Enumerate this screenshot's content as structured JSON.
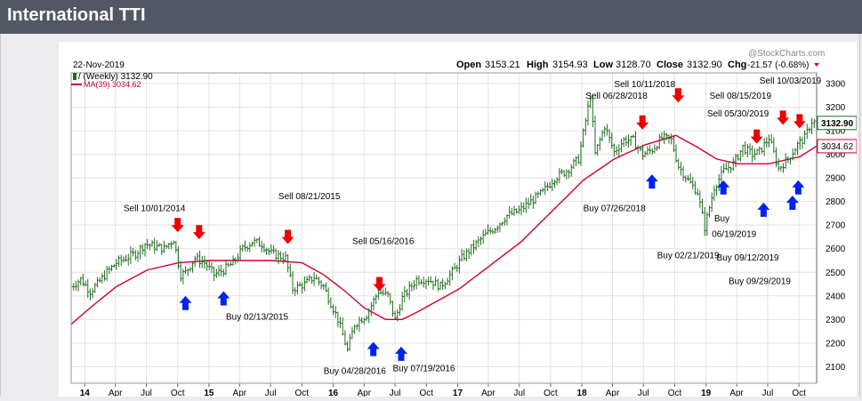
{
  "page": {
    "title": "International TTI"
  },
  "chart_data": {
    "type": "line",
    "style": "weekly high-low-close bars (ohlc)",
    "date_label": "22-Nov-2019",
    "watermark": "@StockCharts.com",
    "price_label": "/ (Weekly) 3132.90",
    "stats": {
      "open_label": "Open",
      "open": "3153.21",
      "high_label": "High",
      "high": "3154.93",
      "low_label": "Low",
      "low": "3128.70",
      "close_label": "Close",
      "close": "3132.90",
      "chg_label": "Chg",
      "chg": "-21.57 (-0.68%)"
    },
    "ma_label": "MA(39) 3034.62",
    "last_price_tag": "3132.90",
    "ma_value_tag": "3034.62",
    "ylim": [
      2030,
      3345
    ],
    "y_ticks": [
      2100,
      2200,
      2300,
      2400,
      2500,
      2600,
      2700,
      2800,
      2900,
      3000,
      3100,
      3200,
      3300
    ],
    "x_ticks": [
      {
        "label": "14",
        "bold": true,
        "date": "2014-01"
      },
      {
        "label": "Apr",
        "bold": false,
        "date": "2014-04"
      },
      {
        "label": "Jul",
        "bold": false,
        "date": "2014-07"
      },
      {
        "label": "Oct",
        "bold": false,
        "date": "2014-10"
      },
      {
        "label": "15",
        "bold": true,
        "date": "2015-01"
      },
      {
        "label": "Apr",
        "bold": false,
        "date": "2015-04"
      },
      {
        "label": "Jul",
        "bold": false,
        "date": "2015-07"
      },
      {
        "label": "Oct",
        "bold": false,
        "date": "2015-10"
      },
      {
        "label": "16",
        "bold": true,
        "date": "2016-01"
      },
      {
        "label": "Apr",
        "bold": false,
        "date": "2016-04"
      },
      {
        "label": "Jul",
        "bold": false,
        "date": "2016-07"
      },
      {
        "label": "Oct",
        "bold": false,
        "date": "2016-10"
      },
      {
        "label": "17",
        "bold": true,
        "date": "2017-01"
      },
      {
        "label": "Apr",
        "bold": false,
        "date": "2017-04"
      },
      {
        "label": "Jul",
        "bold": false,
        "date": "2017-07"
      },
      {
        "label": "Oct",
        "bold": false,
        "date": "2017-10"
      },
      {
        "label": "18",
        "bold": true,
        "date": "2018-01"
      },
      {
        "label": "Apr",
        "bold": false,
        "date": "2018-04"
      },
      {
        "label": "Jul",
        "bold": false,
        "date": "2018-07"
      },
      {
        "label": "Oct",
        "bold": false,
        "date": "2018-10"
      },
      {
        "label": "19",
        "bold": true,
        "date": "2019-01"
      },
      {
        "label": "Apr",
        "bold": false,
        "date": "2019-04"
      },
      {
        "label": "Jul",
        "bold": false,
        "date": "2019-07"
      },
      {
        "label": "Oct",
        "bold": false,
        "date": "2019-10"
      }
    ],
    "grid": true,
    "legend_position": "top-left",
    "colors": {
      "price": "#1f6b1f",
      "ma": "#cc0033",
      "sell_arrow": "#ee0000",
      "buy_arrow": "#0022ee",
      "grid": "#e2e2e2",
      "header_bg": "#525863"
    },
    "price_series": [
      [
        "2013-11-22",
        2440
      ],
      [
        "2013-12-20",
        2470
      ],
      [
        "2014-01-17",
        2420
      ],
      [
        "2014-02-07",
        2450
      ],
      [
        "2014-03-07",
        2500
      ],
      [
        "2014-04-04",
        2540
      ],
      [
        "2014-05-02",
        2560
      ],
      [
        "2014-05-30",
        2580
      ],
      [
        "2014-06-27",
        2620
      ],
      [
        "2014-07-25",
        2610
      ],
      [
        "2014-08-22",
        2600
      ],
      [
        "2014-09-19",
        2640
      ],
      [
        "2014-10-10",
        2490
      ],
      [
        "2014-10-24",
        2500
      ],
      [
        "2014-11-21",
        2560
      ],
      [
        "2014-12-19",
        2540
      ],
      [
        "2015-01-16",
        2490
      ],
      [
        "2015-02-13",
        2510
      ],
      [
        "2015-03-13",
        2540
      ],
      [
        "2015-04-10",
        2600
      ],
      [
        "2015-05-08",
        2630
      ],
      [
        "2015-06-05",
        2620
      ],
      [
        "2015-07-03",
        2580
      ],
      [
        "2015-08-14",
        2560
      ],
      [
        "2015-09-04",
        2430
      ],
      [
        "2015-10-09",
        2450
      ],
      [
        "2015-11-06",
        2480
      ],
      [
        "2015-12-04",
        2440
      ],
      [
        "2016-01-15",
        2300
      ],
      [
        "2016-02-12",
        2170
      ],
      [
        "2016-03-04",
        2280
      ],
      [
        "2016-04-08",
        2320
      ],
      [
        "2016-05-13",
        2420
      ],
      [
        "2016-06-10",
        2400
      ],
      [
        "2016-07-01",
        2300
      ],
      [
        "2016-07-22",
        2390
      ],
      [
        "2016-09-02",
        2470
      ],
      [
        "2016-10-07",
        2470
      ],
      [
        "2016-11-11",
        2440
      ],
      [
        "2016-12-16",
        2500
      ],
      [
        "2017-01-13",
        2560
      ],
      [
        "2017-02-17",
        2610
      ],
      [
        "2017-03-24",
        2660
      ],
      [
        "2017-04-21",
        2690
      ],
      [
        "2017-05-26",
        2740
      ],
      [
        "2017-06-30",
        2760
      ],
      [
        "2017-08-04",
        2800
      ],
      [
        "2017-09-08",
        2840
      ],
      [
        "2017-10-13",
        2900
      ],
      [
        "2017-11-17",
        2930
      ],
      [
        "2017-12-22",
        2980
      ],
      [
        "2018-01-26",
        3250
      ],
      [
        "2018-02-09",
        3000
      ],
      [
        "2018-03-09",
        3120
      ],
      [
        "2018-04-06",
        3010
      ],
      [
        "2018-05-04",
        3060
      ],
      [
        "2018-06-01",
        3060
      ],
      [
        "2018-06-29",
        3000
      ],
      [
        "2018-07-27",
        3020
      ],
      [
        "2018-08-24",
        3070
      ],
      [
        "2018-09-21",
        3060
      ],
      [
        "2018-10-12",
        2950
      ],
      [
        "2018-11-09",
        2890
      ],
      [
        "2018-12-07",
        2840
      ],
      [
        "2018-12-28",
        2690
      ],
      [
        "2019-01-25",
        2860
      ],
      [
        "2019-02-22",
        2930
      ],
      [
        "2019-03-22",
        2960
      ],
      [
        "2019-04-19",
        3030
      ],
      [
        "2019-05-17",
        3000
      ],
      [
        "2019-06-07",
        3010
      ],
      [
        "2019-07-05",
        3070
      ],
      [
        "2019-08-02",
        2940
      ],
      [
        "2019-08-30",
        2980
      ],
      [
        "2019-09-27",
        3040
      ],
      [
        "2019-10-18",
        3070
      ],
      [
        "2019-11-08",
        3140
      ],
      [
        "2019-11-22",
        3133
      ]
    ],
    "ma_series": [
      [
        "2013-11-22",
        2280
      ],
      [
        "2014-01-17",
        2350
      ],
      [
        "2014-04-04",
        2440
      ],
      [
        "2014-07-04",
        2510
      ],
      [
        "2014-10-03",
        2540
      ],
      [
        "2015-01-02",
        2550
      ],
      [
        "2015-04-03",
        2550
      ],
      [
        "2015-07-03",
        2550
      ],
      [
        "2015-10-02",
        2540
      ],
      [
        "2015-12-04",
        2490
      ],
      [
        "2016-02-05",
        2420
      ],
      [
        "2016-04-01",
        2350
      ],
      [
        "2016-06-03",
        2300
      ],
      [
        "2016-07-22",
        2300
      ],
      [
        "2016-09-02",
        2330
      ],
      [
        "2016-11-04",
        2380
      ],
      [
        "2017-01-06",
        2430
      ],
      [
        "2017-04-07",
        2530
      ],
      [
        "2017-07-07",
        2630
      ],
      [
        "2017-10-06",
        2760
      ],
      [
        "2018-01-05",
        2890
      ],
      [
        "2018-04-06",
        2980
      ],
      [
        "2018-07-06",
        3040
      ],
      [
        "2018-10-05",
        3080
      ],
      [
        "2018-12-07",
        3030
      ],
      [
        "2019-02-01",
        2980
      ],
      [
        "2019-04-05",
        2960
      ],
      [
        "2019-07-05",
        2960
      ],
      [
        "2019-10-04",
        2990
      ],
      [
        "2019-11-22",
        3035
      ]
    ],
    "annotations": [
      {
        "text": "Sell 10/01/2014",
        "date": "2014-04-25",
        "value": 2760
      },
      {
        "text": "Sell 08/21/2015",
        "date": "2015-07-24",
        "value": 2810
      },
      {
        "text": "Sell 05/16/2016",
        "date": "2016-02-26",
        "value": 2620
      },
      {
        "text": "Buy 02/13/2015",
        "date": "2015-02-20",
        "value": 2300
      },
      {
        "text": "Buy 04/28/2016",
        "date": "2015-12-04",
        "value": 2070
      },
      {
        "text": "Buy 07/19/2016",
        "date": "2016-06-24",
        "value": 2080
      },
      {
        "text": "Sell 06/28/2018",
        "date": "2018-01-12",
        "value": 3235
      },
      {
        "text": "Sell 10/11/2018",
        "date": "2018-04-06",
        "value": 3285
      },
      {
        "text": "Buy 07/26/2018",
        "date": "2018-01-05",
        "value": 2760
      },
      {
        "text": "Buy 02/21/2019",
        "date": "2018-08-10",
        "value": 2560
      },
      {
        "text": "Sell 05/30/2019",
        "date": "2019-01-04",
        "value": 3160
      },
      {
        "text": "Sell 08/15/2019",
        "date": "2019-01-11",
        "value": 3235
      },
      {
        "text": "Sell 10/03/2019",
        "date": "2019-06-07",
        "value": 3300
      },
      {
        "text": "Buy",
        "date": "2019-01-25",
        "value": 2715
      },
      {
        "text": "06/19/2019",
        "date": "2019-01-18",
        "value": 2650
      },
      {
        "text": "Buy 09/12/2019",
        "date": "2019-02-01",
        "value": 2550
      },
      {
        "text": "Buy 09/29/2019",
        "date": "2019-03-08",
        "value": 2450
      }
    ],
    "signals": [
      {
        "type": "sell",
        "date": "2014-10-01",
        "value": 2700
      },
      {
        "type": "sell",
        "date": "2014-12-03",
        "value": 2670
      },
      {
        "type": "sell",
        "date": "2015-08-21",
        "value": 2650
      },
      {
        "type": "sell",
        "date": "2016-05-16",
        "value": 2450
      },
      {
        "type": "sell",
        "date": "2018-06-28",
        "value": 3135
      },
      {
        "type": "sell",
        "date": "2018-10-11",
        "value": 3250
      },
      {
        "type": "sell",
        "date": "2019-05-30",
        "value": 3075
      },
      {
        "type": "sell",
        "date": "2019-08-15",
        "value": 3155
      },
      {
        "type": "sell",
        "date": "2019-10-03",
        "value": 3140
      },
      {
        "type": "buy",
        "date": "2014-10-24",
        "value": 2370
      },
      {
        "type": "buy",
        "date": "2015-02-13",
        "value": 2390
      },
      {
        "type": "buy",
        "date": "2016-04-28",
        "value": 2175
      },
      {
        "type": "buy",
        "date": "2016-07-19",
        "value": 2155
      },
      {
        "type": "buy",
        "date": "2018-07-26",
        "value": 2885
      },
      {
        "type": "buy",
        "date": "2019-02-21",
        "value": 2860
      },
      {
        "type": "buy",
        "date": "2019-06-19",
        "value": 2765
      },
      {
        "type": "buy",
        "date": "2019-09-12",
        "value": 2795
      },
      {
        "type": "buy",
        "date": "2019-09-29",
        "value": 2860
      }
    ]
  }
}
